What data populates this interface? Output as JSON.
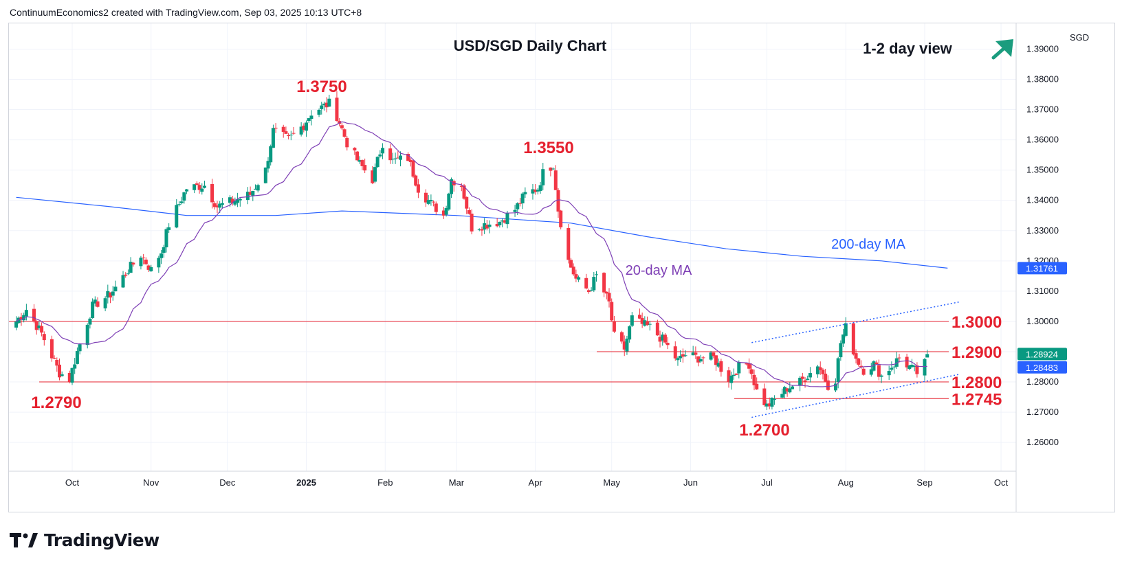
{
  "header": "ContinuumEconomics2 created with TradingView.com, Sep 03, 2025 10:13 UTC+8",
  "brand": {
    "name": "TradingView",
    "logo_icon": "tradingview-logo-icon"
  },
  "currency": "SGD",
  "colors": {
    "up": "#089981",
    "down": "#f23645",
    "ma20": "#7e3fb5",
    "ma200": "#2962ff",
    "level": "#e5202e",
    "trend": "#2962ff",
    "arrow": "#1a9c7e"
  },
  "chart_data": {
    "type": "candlestick",
    "title": "USD/SGD Daily Chart",
    "view_label": "1-2 day view",
    "view_icon": "arrow-up-right-icon",
    "ylim": [
      1.2505,
      1.3985
    ],
    "yticks": [
      "1.39000",
      "1.38000",
      "1.37000",
      "1.36000",
      "1.35000",
      "1.34000",
      "1.33000",
      "1.32000",
      "1.31000",
      "1.30000",
      "1.29000",
      "1.28000",
      "1.27000",
      "1.26000"
    ],
    "xticks": [
      "Oct",
      "Nov",
      "Dec",
      "2025",
      "Feb",
      "Mar",
      "Apr",
      "May",
      "Jun",
      "Jul",
      "Aug",
      "Sep",
      "Oct"
    ],
    "price_labels": [
      {
        "value": "1.31761",
        "color": "#2962ff"
      },
      {
        "value": "1.28924",
        "color": "#089981"
      },
      {
        "value": "1.28483",
        "color": "#2962ff"
      }
    ],
    "levels": [
      {
        "label": "1.3000",
        "value": 1.3
      },
      {
        "label": "1.2900",
        "value": 1.29
      },
      {
        "label": "1.2800",
        "value": 1.28
      },
      {
        "label": "1.2745",
        "value": 1.2745
      }
    ],
    "annotations": [
      {
        "label": "1.3750",
        "value": 1.375
      },
      {
        "label": "1.3550",
        "value": 1.355
      },
      {
        "label": "1.2790",
        "value": 1.279
      },
      {
        "label": "1.2700",
        "value": 1.27
      }
    ],
    "ma_labels": {
      "ma20": "20-day MA",
      "ma200": "200-day MA"
    },
    "anchors": [
      {
        "date": "2024-09-09",
        "close": 1.3
      },
      {
        "date": "2024-09-13",
        "close": 1.304
      },
      {
        "date": "2024-09-19",
        "close": 1.296
      },
      {
        "date": "2024-09-26",
        "close": 1.283
      },
      {
        "date": "2024-09-30",
        "close": 1.281
      },
      {
        "date": "2024-10-03",
        "close": 1.29
      },
      {
        "date": "2024-10-09",
        "close": 1.305
      },
      {
        "date": "2024-10-16",
        "close": 1.309
      },
      {
        "date": "2024-10-23",
        "close": 1.317
      },
      {
        "date": "2024-10-28",
        "close": 1.322
      },
      {
        "date": "2024-11-01",
        "close": 1.317
      },
      {
        "date": "2024-11-05",
        "close": 1.323
      },
      {
        "date": "2024-11-08",
        "close": 1.332
      },
      {
        "date": "2024-11-15",
        "close": 1.344
      },
      {
        "date": "2024-11-22",
        "close": 1.345
      },
      {
        "date": "2024-11-27",
        "close": 1.338
      },
      {
        "date": "2024-12-04",
        "close": 1.34
      },
      {
        "date": "2024-12-10",
        "close": 1.342
      },
      {
        "date": "2024-12-16",
        "close": 1.35
      },
      {
        "date": "2024-12-19",
        "close": 1.363
      },
      {
        "date": "2024-12-25",
        "close": 1.36
      },
      {
        "date": "2024-12-31",
        "close": 1.365
      },
      {
        "date": "2025-01-03",
        "close": 1.369
      },
      {
        "date": "2025-01-10",
        "close": 1.372
      },
      {
        "date": "2025-01-13",
        "close": 1.368
      },
      {
        "date": "2025-01-17",
        "close": 1.359
      },
      {
        "date": "2025-01-22",
        "close": 1.352
      },
      {
        "date": "2025-01-27",
        "close": 1.347
      },
      {
        "date": "2025-01-31",
        "close": 1.359
      },
      {
        "date": "2025-02-04",
        "close": 1.353
      },
      {
        "date": "2025-02-10",
        "close": 1.354
      },
      {
        "date": "2025-02-14",
        "close": 1.344
      },
      {
        "date": "2025-02-19",
        "close": 1.339
      },
      {
        "date": "2025-02-24",
        "close": 1.335
      },
      {
        "date": "2025-02-27",
        "close": 1.347
      },
      {
        "date": "2025-03-03",
        "close": 1.345
      },
      {
        "date": "2025-03-07",
        "close": 1.331
      },
      {
        "date": "2025-03-12",
        "close": 1.332
      },
      {
        "date": "2025-03-18",
        "close": 1.333
      },
      {
        "date": "2025-03-24",
        "close": 1.337
      },
      {
        "date": "2025-03-28",
        "close": 1.342
      },
      {
        "date": "2025-04-02",
        "close": 1.344
      },
      {
        "date": "2025-04-04",
        "close": 1.349
      },
      {
        "date": "2025-04-08",
        "close": 1.352
      },
      {
        "date": "2025-04-10",
        "close": 1.337
      },
      {
        "date": "2025-04-14",
        "close": 1.32
      },
      {
        "date": "2025-04-17",
        "close": 1.314
      },
      {
        "date": "2025-04-22",
        "close": 1.31
      },
      {
        "date": "2025-04-25",
        "close": 1.315
      },
      {
        "date": "2025-04-30",
        "close": 1.306
      },
      {
        "date": "2025-05-02",
        "close": 1.295
      },
      {
        "date": "2025-05-06",
        "close": 1.291
      },
      {
        "date": "2025-05-09",
        "close": 1.301
      },
      {
        "date": "2025-05-13",
        "close": 1.299
      },
      {
        "date": "2025-05-16",
        "close": 1.298
      },
      {
        "date": "2025-05-21",
        "close": 1.294
      },
      {
        "date": "2025-05-27",
        "close": 1.287
      },
      {
        "date": "2025-05-30",
        "close": 1.289
      },
      {
        "date": "2025-06-04",
        "close": 1.288
      },
      {
        "date": "2025-06-10",
        "close": 1.288
      },
      {
        "date": "2025-06-16",
        "close": 1.281
      },
      {
        "date": "2025-06-20",
        "close": 1.285
      },
      {
        "date": "2025-06-24",
        "close": 1.286
      },
      {
        "date": "2025-06-27",
        "close": 1.277
      },
      {
        "date": "2025-07-01",
        "close": 1.272
      },
      {
        "date": "2025-07-04",
        "close": 1.274
      },
      {
        "date": "2025-07-09",
        "close": 1.278
      },
      {
        "date": "2025-07-14",
        "close": 1.28
      },
      {
        "date": "2025-07-18",
        "close": 1.283
      },
      {
        "date": "2025-07-21",
        "close": 1.286
      },
      {
        "date": "2025-07-25",
        "close": 1.279
      },
      {
        "date": "2025-07-28",
        "close": 1.281
      },
      {
        "date": "2025-07-30",
        "close": 1.293
      },
      {
        "date": "2025-08-01",
        "close": 1.298
      },
      {
        "date": "2025-08-05",
        "close": 1.288
      },
      {
        "date": "2025-08-08",
        "close": 1.284
      },
      {
        "date": "2025-08-12",
        "close": 1.286
      },
      {
        "date": "2025-08-15",
        "close": 1.282
      },
      {
        "date": "2025-08-20",
        "close": 1.286
      },
      {
        "date": "2025-08-22",
        "close": 1.288
      },
      {
        "date": "2025-08-26",
        "close": 1.285
      },
      {
        "date": "2025-08-29",
        "close": 1.283
      },
      {
        "date": "2025-09-01",
        "close": 1.286
      },
      {
        "date": "2025-09-02",
        "close": 1.2892
      }
    ],
    "ma200_points": [
      {
        "date": "2024-09-09",
        "value": 1.341
      },
      {
        "date": "2024-10-15",
        "value": 1.338
      },
      {
        "date": "2024-11-15",
        "value": 1.335
      },
      {
        "date": "2024-12-20",
        "value": 1.335
      },
      {
        "date": "2025-01-15",
        "value": 1.3365
      },
      {
        "date": "2025-03-01",
        "value": 1.335
      },
      {
        "date": "2025-04-15",
        "value": 1.3325
      },
      {
        "date": "2025-05-15",
        "value": 1.328
      },
      {
        "date": "2025-06-15",
        "value": 1.324
      },
      {
        "date": "2025-07-15",
        "value": 1.3215
      },
      {
        "date": "2025-08-15",
        "value": 1.32
      },
      {
        "date": "2025-09-10",
        "value": 1.3176
      }
    ],
    "trendlines": [
      {
        "from": {
          "date": "2025-06-25",
          "value": 1.293
        },
        "to": {
          "date": "2025-09-15",
          "value": 1.3065
        }
      },
      {
        "from": {
          "date": "2025-06-25",
          "value": 1.2683
        },
        "to": {
          "date": "2025-09-15",
          "value": 1.2826
        }
      }
    ]
  }
}
